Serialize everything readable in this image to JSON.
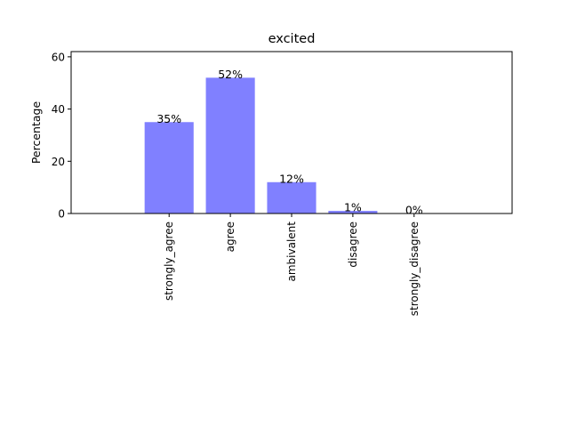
{
  "chart_data": {
    "type": "bar",
    "title": "excited",
    "xlabel": "",
    "ylabel": "Percentage",
    "categories": [
      "strongly_agree",
      "agree",
      "ambivalent",
      "disagree",
      "strongly_disagree"
    ],
    "values": [
      35,
      52,
      12,
      1,
      0
    ],
    "data_labels": [
      "35%",
      "52%",
      "12%",
      "1%",
      "0%"
    ],
    "ylim": [
      0,
      62
    ],
    "yticks": [
      0,
      20,
      40,
      60
    ],
    "ytick_labels": [
      "0",
      "20",
      "40",
      "60"
    ],
    "grid": false,
    "bar_color": "#8080ff"
  }
}
